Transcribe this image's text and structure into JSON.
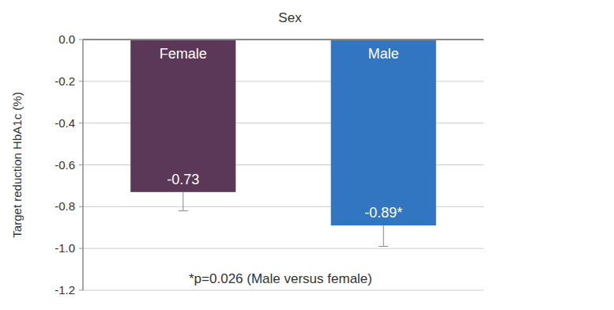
{
  "chart_data": {
    "type": "bar",
    "title": "Sex",
    "y_label": "Target reduction HbA1c (%)",
    "categories": [
      "Female",
      "Male"
    ],
    "values": [
      -0.73,
      -0.89
    ],
    "value_labels": [
      "-0.73",
      "-0.89*"
    ],
    "errors": [
      0.09,
      0.1
    ],
    "colors": [
      "#5b3758",
      "#3275c0"
    ],
    "ylim": [
      -1.2,
      0
    ],
    "yticks": [
      {
        "value": 0,
        "label": "0.0"
      },
      -0.2,
      -0.4,
      -0.6,
      -0.8,
      {
        "value": -1,
        "label": "-1.0"
      },
      -1.2
    ],
    "grid": true,
    "data_labels": true,
    "annotation": "*p=0.026 (Male versus female)"
  }
}
